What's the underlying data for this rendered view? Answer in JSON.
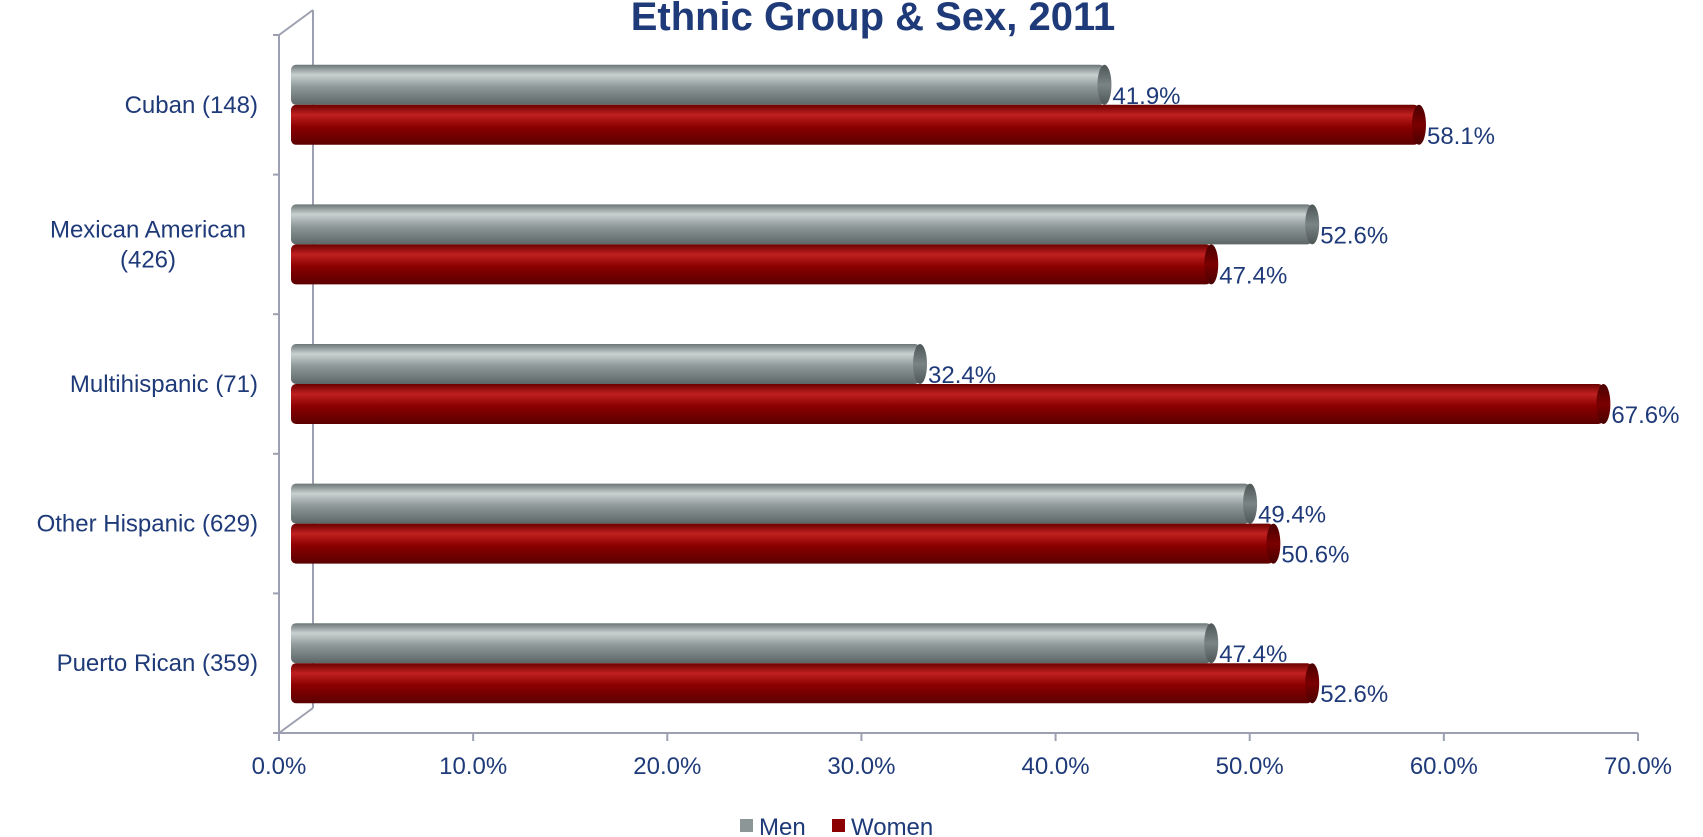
{
  "chart_data": {
    "type": "bar",
    "orientation": "horizontal",
    "title": "Ethnic Group & Sex, 2011",
    "categories": [
      "Cuban (148)",
      "Mexican American (426)",
      "Multihispanic (71)",
      "Other Hispanic (629)",
      "Puerto Rican (359)"
    ],
    "category_lines": [
      [
        "Cuban (148)"
      ],
      [
        "Mexican American",
        "(426)"
      ],
      [
        "Multihispanic (71)"
      ],
      [
        "Other Hispanic (629)"
      ],
      [
        "Puerto Rican (359)"
      ]
    ],
    "series": [
      {
        "name": "Men",
        "values": [
          41.9,
          52.6,
          32.4,
          49.4,
          47.4
        ],
        "labels": [
          "41.9%",
          "52.6%",
          "32.4%",
          "49.4%",
          "47.4%"
        ],
        "color": "#8c9696"
      },
      {
        "name": "Women",
        "values": [
          58.1,
          47.4,
          67.6,
          50.6,
          52.6
        ],
        "labels": [
          "58.1%",
          "47.4%",
          "67.6%",
          "50.6%",
          "52.6%"
        ],
        "color": "#8b0000"
      }
    ],
    "xlim": [
      0,
      70
    ],
    "xticks": [
      "0.0%",
      "10.0%",
      "20.0%",
      "30.0%",
      "40.0%",
      "50.0%",
      "60.0%",
      "70.0%"
    ],
    "xlabel": "",
    "ylabel": "",
    "grid": false,
    "legend_position": "bottom",
    "text_color": "#1f3a78"
  }
}
